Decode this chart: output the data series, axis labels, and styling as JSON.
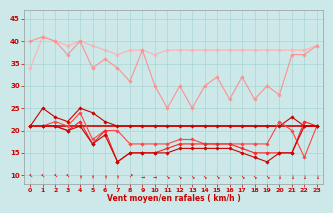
{
  "x": [
    0,
    1,
    2,
    3,
    4,
    5,
    6,
    7,
    8,
    9,
    10,
    11,
    12,
    13,
    14,
    15,
    16,
    17,
    18,
    19,
    20,
    21,
    22,
    23
  ],
  "series": [
    {
      "name": "rafales_max_top",
      "color": "#ffb0b0",
      "lw": 0.8,
      "marker": "D",
      "markersize": 1.8,
      "y": [
        34,
        41,
        40,
        39,
        40,
        39,
        38,
        37,
        38,
        38,
        37,
        38,
        38,
        38,
        38,
        38,
        38,
        38,
        38,
        38,
        38,
        38,
        38,
        39
      ]
    },
    {
      "name": "rafales_zigzag",
      "color": "#ff9090",
      "lw": 0.8,
      "marker": "D",
      "markersize": 1.8,
      "y": [
        40,
        41,
        40,
        37,
        40,
        34,
        36,
        34,
        31,
        38,
        30,
        25,
        30,
        25,
        30,
        32,
        27,
        32,
        27,
        30,
        28,
        37,
        37,
        39
      ]
    },
    {
      "name": "vent_moyen_flat",
      "color": "#cc0000",
      "lw": 1.2,
      "marker": null,
      "markersize": 0,
      "y": [
        21,
        21,
        21,
        21,
        21,
        21,
        21,
        21,
        21,
        21,
        21,
        21,
        21,
        21,
        21,
        21,
        21,
        21,
        21,
        21,
        21,
        21,
        21,
        21
      ]
    },
    {
      "name": "vent_moyen_high",
      "color": "#cc0000",
      "lw": 0.8,
      "marker": "D",
      "markersize": 1.8,
      "y": [
        21,
        25,
        23,
        22,
        25,
        24,
        22,
        21,
        21,
        21,
        21,
        21,
        21,
        21,
        21,
        21,
        21,
        21,
        21,
        21,
        21,
        23,
        21,
        21
      ]
    },
    {
      "name": "vent_min1",
      "color": "#ff4444",
      "lw": 0.8,
      "marker": "D",
      "markersize": 1.8,
      "y": [
        21,
        21,
        22,
        21,
        24,
        18,
        20,
        20,
        17,
        17,
        17,
        17,
        18,
        18,
        17,
        17,
        17,
        17,
        17,
        17,
        22,
        20,
        14,
        21
      ]
    },
    {
      "name": "vent_min2",
      "color": "#ff2222",
      "lw": 0.8,
      "marker": "D",
      "markersize": 1.8,
      "y": [
        21,
        21,
        21,
        20,
        22,
        17,
        20,
        13,
        15,
        15,
        15,
        16,
        17,
        17,
        17,
        17,
        17,
        16,
        15,
        15,
        15,
        15,
        22,
        21
      ]
    },
    {
      "name": "vent_min3",
      "color": "#cc0000",
      "lw": 0.8,
      "marker": "D",
      "markersize": 1.8,
      "y": [
        21,
        21,
        21,
        20,
        21,
        17,
        19,
        13,
        15,
        15,
        15,
        15,
        16,
        16,
        16,
        16,
        16,
        15,
        14,
        13,
        15,
        15,
        21,
        21
      ]
    }
  ],
  "wind_symbols": [
    "↖",
    "↖",
    "↖",
    "↖",
    "↑",
    "↑",
    "↑",
    "↑",
    "↗",
    "→",
    "→",
    "↘",
    "↘",
    "↘",
    "↘",
    "↘",
    "↘",
    "↘",
    "↘",
    "↘",
    "↓",
    "↓",
    "↓",
    "↓"
  ],
  "xlabel": "Vent moyen/en rafales ( km/h )",
  "xlim": [
    -0.5,
    23.5
  ],
  "ylim": [
    8,
    47
  ],
  "yticks": [
    10,
    15,
    20,
    25,
    30,
    35,
    40,
    45
  ],
  "xticks": [
    0,
    1,
    2,
    3,
    4,
    5,
    6,
    7,
    8,
    9,
    10,
    11,
    12,
    13,
    14,
    15,
    16,
    17,
    18,
    19,
    20,
    21,
    22,
    23
  ],
  "bg_color": "#cce8e8",
  "grid_color": "#aad4d4",
  "text_color": "#cc0000"
}
